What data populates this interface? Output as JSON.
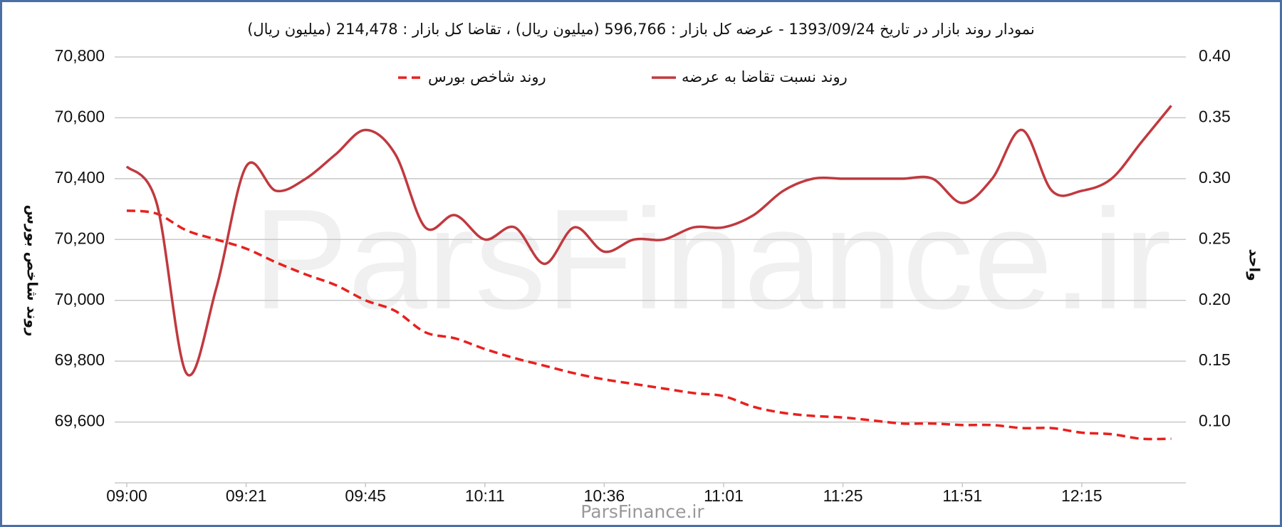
{
  "chart_data": {
    "type": "line",
    "title": "نمودار روند بازار در تاریخ 1393/09/24 - عرضه کل بازار : 596,766 (میلیون ریال) ، تقاضا کل بازار : 214,478 (میلیون ریال)",
    "y_label": "روند شاخص بورس",
    "y2_label": "واحد",
    "watermark": "ParsFinance.ir",
    "footer": "ParsFinance.ir",
    "categories": [
      "09:00",
      null,
      null,
      null,
      "09:21",
      null,
      null,
      null,
      "09:45",
      null,
      null,
      null,
      "10:11",
      null,
      null,
      null,
      "10:36",
      null,
      null,
      null,
      "11:01",
      null,
      null,
      null,
      "11:25",
      null,
      null,
      null,
      "11:51",
      null,
      null,
      null,
      "12:15",
      null,
      null,
      null
    ],
    "series": [
      {
        "name": "روند شاخص بورس",
        "color": "#e8201e",
        "style": "dashed",
        "values": [
          70295,
          70285,
          70230,
          70200,
          70170,
          70125,
          70085,
          70050,
          70000,
          69965,
          69895,
          69875,
          69840,
          69810,
          69785,
          69760,
          69740,
          69725,
          69710,
          69695,
          69685,
          69650,
          69630,
          69620,
          69615,
          69605,
          69595,
          69595,
          69590,
          69590,
          69580,
          69580,
          69565,
          69560,
          69545,
          69545
        ]
      },
      {
        "name": "روند نسبت تقاضا به عرضه",
        "color": "#c0393f",
        "style": "solid",
        "axis": "y2",
        "values": [
          0.31,
          0.28,
          0.14,
          0.21,
          0.31,
          0.29,
          0.3,
          0.32,
          0.34,
          0.32,
          0.26,
          0.27,
          0.25,
          0.26,
          0.23,
          0.26,
          0.24,
          0.25,
          0.25,
          0.26,
          0.26,
          0.27,
          0.29,
          0.3,
          0.3,
          0.3,
          0.3,
          0.3,
          0.28,
          0.3,
          0.34,
          0.29,
          0.29,
          0.3,
          0.33,
          0.36
        ]
      }
    ],
    "ylim": [
      69400,
      70800
    ],
    "yticks": [
      {
        "value": 69600,
        "label": "69,600"
      },
      {
        "value": 69800,
        "label": "69,800"
      },
      {
        "value": 70000,
        "label": "70,000"
      },
      {
        "value": 70200,
        "label": "70,200"
      },
      {
        "value": 70400,
        "label": "70,400"
      },
      {
        "value": 70600,
        "label": "70,600"
      },
      {
        "value": 70800,
        "label": "70,800"
      }
    ],
    "y2lim": [
      0.05,
      0.4
    ],
    "y2ticks": [
      {
        "value": 0.1,
        "label": "0.10"
      },
      {
        "value": 0.15,
        "label": "0.15"
      },
      {
        "value": 0.2,
        "label": "0.20"
      },
      {
        "value": 0.25,
        "label": "0.25"
      },
      {
        "value": 0.3,
        "label": "0.30"
      },
      {
        "value": 0.35,
        "label": "0.35"
      },
      {
        "value": 0.4,
        "label": "0.40"
      }
    ],
    "grid": true,
    "legend": "top"
  }
}
